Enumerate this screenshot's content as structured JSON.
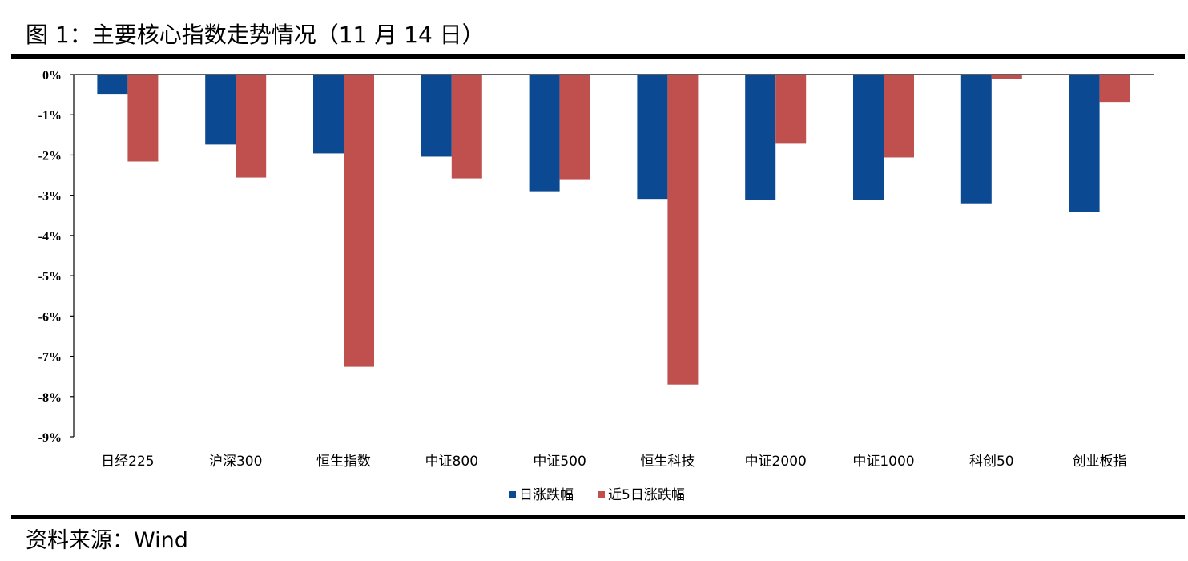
{
  "figure": {
    "title": "图 1：主要核心指数走势情况（11 月 14 日）",
    "source": "资料来源：Wind"
  },
  "chart_data": {
    "type": "bar",
    "categories": [
      "日经225",
      "沪深300",
      "恒生指数",
      "中证800",
      "中证500",
      "恒生科技",
      "中证2000",
      "中证1000",
      "科创50",
      "创业板指"
    ],
    "series": [
      {
        "name": "日涨跌幅",
        "color": "#0B4A92",
        "values": [
          -0.48,
          -1.74,
          -1.96,
          -2.04,
          -2.9,
          -3.09,
          -3.12,
          -3.12,
          -3.2,
          -3.42
        ]
      },
      {
        "name": "近5日涨跌幅",
        "color": "#C0504D",
        "values": [
          -2.16,
          -2.56,
          -7.26,
          -2.58,
          -2.6,
          -7.7,
          -1.72,
          -2.06,
          -0.1,
          -0.68
        ]
      }
    ],
    "ylim": [
      -9,
      0
    ],
    "yticks": [
      0,
      -1,
      -2,
      -3,
      -4,
      -5,
      -6,
      -7,
      -8,
      -9
    ],
    "ytick_labels": [
      "0%",
      "-1%",
      "-2%",
      "-3%",
      "-4%",
      "-5%",
      "-6%",
      "-7%",
      "-8%",
      "-9%"
    ],
    "xlabel": "",
    "ylabel": "",
    "grid": false,
    "legend_position": "bottom-center"
  }
}
